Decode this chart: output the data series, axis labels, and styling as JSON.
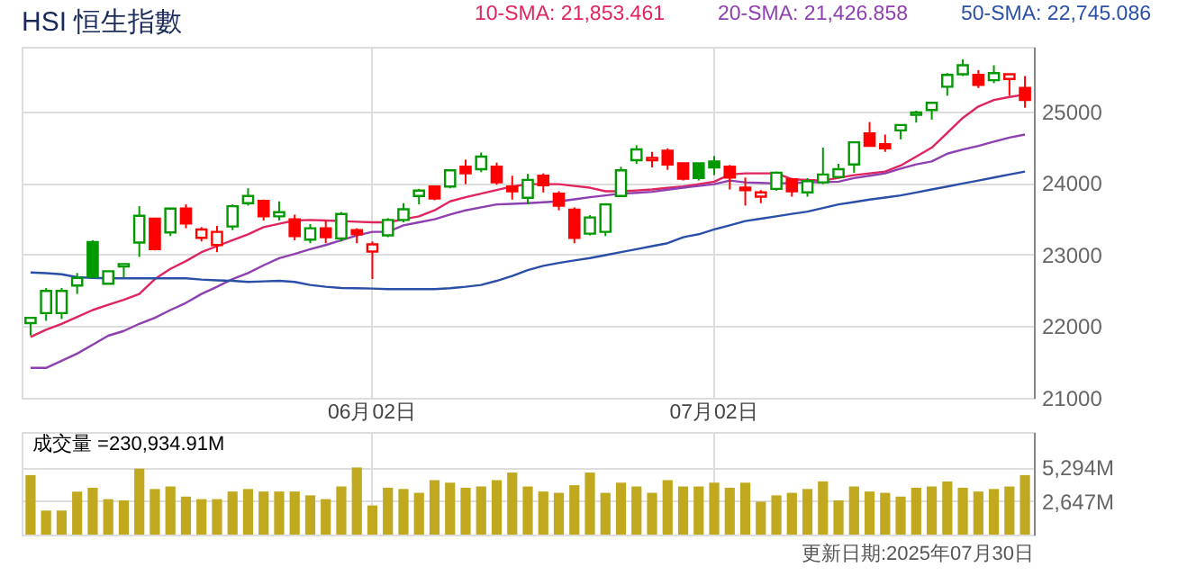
{
  "chart_data": [
    {
      "type": "candlestick",
      "title": "HSI 恒生指數",
      "categories": [
        null,
        null,
        null,
        null,
        null,
        null,
        null,
        null,
        null,
        null,
        null,
        null,
        null,
        null,
        null,
        null,
        null,
        null,
        null,
        null,
        null,
        null,
        "06月02日",
        null,
        null,
        null,
        null,
        null,
        null,
        null,
        null,
        null,
        null,
        null,
        null,
        null,
        null,
        null,
        null,
        null,
        null,
        null,
        null,
        null,
        "07月02日",
        null,
        null,
        null,
        null,
        null,
        null,
        null,
        null,
        null,
        null,
        null,
        null,
        null,
        null,
        null,
        null,
        null,
        null,
        null,
        null
      ],
      "ohlc": [
        [
          22042,
          22130,
          21870,
          22117
        ],
        [
          22183,
          22533,
          22075,
          22492
        ],
        [
          22183,
          22533,
          22100,
          22492
        ],
        [
          22567,
          22742,
          22450,
          22675
        ],
        [
          23175,
          23200,
          22680,
          22690
        ],
        [
          22592,
          22767,
          22592,
          22767
        ],
        [
          22833,
          22867,
          22675,
          22867
        ],
        [
          23167,
          23675,
          22967,
          23542
        ],
        [
          23500,
          23500,
          23058,
          23075
        ],
        [
          23308,
          23642,
          23258,
          23642
        ],
        [
          23642,
          23700,
          23367,
          23433
        ],
        [
          23233,
          23383,
          23183,
          23350
        ],
        [
          23133,
          23400,
          23033,
          23317
        ],
        [
          23392,
          23700,
          23342,
          23675
        ],
        [
          23717,
          23925,
          23683,
          23817
        ],
        [
          23750,
          23767,
          23475,
          23533
        ],
        [
          23533,
          23742,
          23475,
          23592
        ],
        [
          23492,
          23558,
          23200,
          23258
        ],
        [
          23208,
          23425,
          23158,
          23367
        ],
        [
          23367,
          23475,
          23158,
          23242
        ],
        [
          23225,
          23592,
          23183,
          23567
        ],
        [
          23342,
          23367,
          23158,
          23283
        ],
        [
          23042,
          23183,
          22658,
          23142
        ],
        [
          23267,
          23508,
          23242,
          23483
        ],
        [
          23483,
          23717,
          23450,
          23633
        ],
        [
          23817,
          23917,
          23700,
          23892
        ],
        [
          23950,
          23950,
          23758,
          23783
        ],
        [
          23950,
          24175,
          23925,
          24175
        ],
        [
          24225,
          24325,
          23983,
          24133
        ],
        [
          24192,
          24425,
          24150,
          24367
        ],
        [
          24225,
          24283,
          23975,
          24008
        ],
        [
          23950,
          24100,
          23767,
          23883
        ],
        [
          23792,
          24125,
          23700,
          24042
        ],
        [
          24100,
          24133,
          23867,
          23967
        ],
        [
          23850,
          23883,
          23617,
          23683
        ],
        [
          23625,
          23658,
          23158,
          23233
        ],
        [
          23292,
          23550,
          23267,
          23517
        ],
        [
          23317,
          23717,
          23258,
          23700
        ],
        [
          23817,
          24225,
          23817,
          24175
        ],
        [
          24317,
          24525,
          24267,
          24467
        ],
        [
          24317,
          24433,
          24217,
          24350
        ],
        [
          24450,
          24483,
          24183,
          24258
        ],
        [
          24275,
          24275,
          24033,
          24058
        ],
        [
          24275,
          24275,
          24033,
          24067
        ],
        [
          24300,
          24375,
          24108,
          24217
        ],
        [
          24225,
          24250,
          23908,
          24075
        ],
        [
          23933,
          24075,
          23683,
          23900
        ],
        [
          23808,
          23900,
          23717,
          23867
        ],
        [
          23917,
          24158,
          23892,
          24142
        ],
        [
          24050,
          24067,
          23808,
          23883
        ],
        [
          23867,
          24067,
          23808,
          24025
        ],
        [
          24008,
          24492,
          23983,
          24117
        ],
        [
          24083,
          24267,
          24067,
          24192
        ],
        [
          24258,
          24567,
          24142,
          24567
        ],
        [
          24692,
          24850,
          24517,
          24517
        ],
        [
          24542,
          24675,
          24433,
          24483
        ],
        [
          24733,
          24808,
          24608,
          24808
        ],
        [
          24950,
          25008,
          24842,
          24983
        ],
        [
          25017,
          25117,
          24883,
          25117
        ],
        [
          25342,
          25533,
          25217,
          25508
        ],
        [
          25517,
          25725,
          25492,
          25642
        ],
        [
          25508,
          25575,
          25325,
          25367
        ],
        [
          25433,
          25642,
          25392,
          25533
        ],
        [
          25450,
          25517,
          25217,
          25517
        ],
        [
          25325,
          25492,
          25050,
          25158
        ]
      ],
      "colors": [
        "#009900",
        "#009900",
        "#009900",
        "#009900",
        "#009900",
        "#009900",
        "#009900",
        "#009900",
        "#ff0000",
        "#009900",
        "#ff0000",
        "#ff0000",
        "#ff0000",
        "#009900",
        "#009900",
        "#ff0000",
        "#009900",
        "#ff0000",
        "#009900",
        "#ff0000",
        "#009900",
        "#ff0000",
        "#ff0000",
        "#009900",
        "#009900",
        "#009900",
        "#ff0000",
        "#009900",
        "#ff0000",
        "#009900",
        "#ff0000",
        "#ff0000",
        "#009900",
        "#ff0000",
        "#ff0000",
        "#ff0000",
        "#009900",
        "#009900",
        "#009900",
        "#009900",
        "#ff0000",
        "#ff0000",
        "#ff0000",
        "#009900",
        "#009900",
        "#ff0000",
        "#ff0000",
        "#ff0000",
        "#009900",
        "#ff0000",
        "#009900",
        "#009900",
        "#009900",
        "#009900",
        "#ff0000",
        "#ff0000",
        "#009900",
        "#009900",
        "#009900",
        "#009900",
        "#009900",
        "#ff0000",
        "#009900",
        "#ff0000",
        "#ff0000"
      ],
      "series": [
        {
          "name": "10-SMA: 21,853.461",
          "type": "line",
          "color": "#e0245e",
          "values": [
            21850,
            21950,
            22033,
            22130,
            22225,
            22300,
            22367,
            22450,
            22658,
            22800,
            22908,
            23033,
            23117,
            23200,
            23283,
            23383,
            23430,
            23475,
            23483,
            23475,
            23467,
            23458,
            23450,
            23450,
            23492,
            23533,
            23617,
            23742,
            23800,
            23850,
            23900,
            23950,
            23983,
            23983,
            23983,
            23958,
            23933,
            23883,
            23883,
            23895,
            23908,
            23930,
            23950,
            23983,
            24017,
            24117,
            24133,
            24133,
            24133,
            24050,
            24040,
            24033,
            24070,
            24108,
            24133,
            24158,
            24242,
            24367,
            24492,
            24700,
            24908,
            25067,
            25158,
            25200,
            25233
          ]
        },
        {
          "name": "20-SMA: 21,426.858",
          "type": "line",
          "color": "#8e3fb0",
          "values": [
            21417,
            21417,
            21517,
            21617,
            21742,
            21867,
            21933,
            22033,
            22117,
            22225,
            22325,
            22450,
            22550,
            22658,
            22742,
            22850,
            22950,
            23008,
            23075,
            23133,
            23200,
            23267,
            23317,
            23317,
            23408,
            23450,
            23492,
            23558,
            23617,
            23658,
            23700,
            23708,
            23717,
            23730,
            23742,
            23770,
            23800,
            23825,
            23850,
            23862,
            23875,
            23905,
            23933,
            23958,
            23983,
            24033,
            24008,
            24000,
            23992,
            24000,
            24008,
            24012,
            24017,
            24067,
            24100,
            24133,
            24200,
            24258,
            24300,
            24408,
            24467,
            24517,
            24575,
            24633,
            24675
          ]
        },
        {
          "name": "50-SMA: 22,745.086",
          "type": "line",
          "color": "#2a4fa8",
          "values": [
            22750,
            22740,
            22725,
            22683,
            22675,
            22667,
            22667,
            22667,
            22667,
            22667,
            22667,
            22650,
            22640,
            22633,
            22617,
            22625,
            22633,
            22617,
            22575,
            22550,
            22533,
            22530,
            22525,
            22517,
            22517,
            22517,
            22517,
            22530,
            22550,
            22575,
            22633,
            22700,
            22783,
            22842,
            22883,
            22917,
            22950,
            22992,
            23033,
            23075,
            23117,
            23158,
            23242,
            23283,
            23350,
            23408,
            23467,
            23500,
            23533,
            23567,
            23600,
            23650,
            23700,
            23733,
            23767,
            23796,
            23825,
            23867,
            23908,
            23950,
            23992,
            24033,
            24075,
            24117,
            24158
          ]
        }
      ],
      "ylim": [
        21000,
        25900
      ],
      "yticks": [
        21000,
        22000,
        23000,
        24000,
        25000
      ],
      "grid": true,
      "legend": "top right"
    },
    {
      "type": "bar",
      "categories": [
        null,
        null,
        null,
        null,
        null,
        null,
        null,
        null,
        null,
        null,
        null,
        null,
        null,
        null,
        null,
        null,
        null,
        null,
        null,
        null,
        null,
        null,
        null,
        null,
        null,
        null,
        null,
        null,
        null,
        null,
        null,
        null,
        null,
        null,
        null,
        null,
        null,
        null,
        null,
        null,
        null,
        null,
        null,
        null,
        null,
        null,
        null,
        null,
        null,
        null,
        null,
        null,
        null,
        null,
        null,
        null,
        null,
        null,
        null,
        null,
        null,
        null,
        null,
        null,
        null
      ],
      "values": [
        4700,
        1900,
        1900,
        3400,
        3700,
        2800,
        2700,
        5200,
        3600,
        3800,
        3000,
        2800,
        2800,
        3400,
        3600,
        3400,
        3400,
        3400,
        3100,
        2800,
        3800,
        5300,
        2300,
        3700,
        3600,
        3300,
        4300,
        4100,
        3700,
        3800,
        4300,
        4900,
        3800,
        3400,
        3300,
        3900,
        4900,
        3300,
        4100,
        3800,
        3300,
        4300,
        3800,
        3800,
        4100,
        3700,
        4100,
        2600,
        3100,
        3300,
        3600,
        4200,
        2700,
        3800,
        3400,
        3300,
        3000,
        3700,
        3800,
        4200,
        3700,
        3400,
        3600,
        3800,
        4700
      ],
      "color": "#c1a91f",
      "ylim": [
        0,
        8100
      ],
      "yticks": [
        {
          "value": 2647,
          "label": "2,647M"
        },
        {
          "value": 5294,
          "label": "5,294M"
        }
      ],
      "grid": true,
      "tick_labels": "y",
      "annotations": [
        "成交量 =230,934.91M",
        "更新日期:2025年07月30日"
      ]
    }
  ]
}
